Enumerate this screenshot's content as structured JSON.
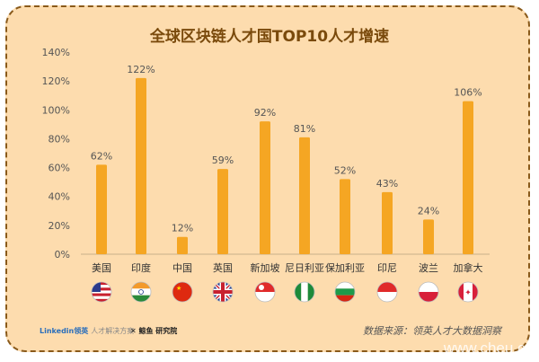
{
  "chart_data": {
    "type": "bar",
    "title": "全球区块链人才国TOP10人才增速",
    "categories": [
      "美国",
      "印度",
      "中国",
      "英国",
      "新加坡",
      "尼日利亚",
      "保加利亚",
      "印尼",
      "波兰",
      "加拿大"
    ],
    "values": [
      62,
      122,
      12,
      59,
      92,
      81,
      52,
      43,
      24,
      106
    ],
    "data_labels": [
      "62%",
      "122%",
      "12%",
      "59%",
      "92%",
      "81%",
      "52%",
      "43%",
      "24%",
      "106%"
    ],
    "ylim": [
      0,
      140
    ],
    "yticks": [
      "0%",
      "20%",
      "40%",
      "60%",
      "80%",
      "100%",
      "120%",
      "140%"
    ],
    "grid": false,
    "bar_color": "#f5a623",
    "flags": [
      "us-flag-icon",
      "india-flag-icon",
      "china-flag-icon",
      "uk-flag-icon",
      "singapore-flag-icon",
      "nigeria-flag-icon",
      "bulgaria-flag-icon",
      "indonesia-flag-icon",
      "poland-flag-icon",
      "canada-flag-icon"
    ]
  },
  "footer": {
    "logo_linkedin": "Linkedin领英",
    "logo_linkedin_sub": "人才解决方案",
    "logo_second": "✕ 鲸鱼 研究院",
    "source": "数据来源：领英人才大数据洞察",
    "watermark": "www.cheu.cn"
  },
  "colors": {
    "background": "#fddcae",
    "title": "#7a4a0c",
    "bar": "#f5a623"
  }
}
